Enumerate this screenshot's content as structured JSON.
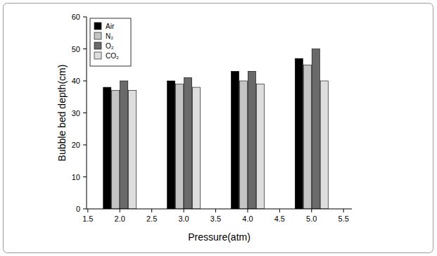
{
  "chart_data": {
    "type": "bar",
    "x_label": "Pressure(atm)",
    "y_label": "Bubble bed depth(cm)",
    "x": [
      2,
      3,
      4,
      5
    ],
    "series": [
      {
        "name": "Air",
        "color": "#000000",
        "values": [
          38,
          40,
          43,
          47
        ]
      },
      {
        "name": "N₂",
        "color": "#c4c4c4",
        "values": [
          37,
          39,
          40,
          45
        ]
      },
      {
        "name": "O₂",
        "color": "#6a6a6a",
        "values": [
          40,
          41,
          43,
          50
        ]
      },
      {
        "name": "CO₂",
        "color": "#dedede",
        "values": [
          37,
          38,
          39,
          40
        ]
      }
    ],
    "xlim": [
      1.48,
      5.63
    ],
    "xticks": [
      1.5,
      {
        "value": 2,
        "label": "2.0"
      },
      2.5,
      {
        "value": 3,
        "label": "3.0"
      },
      3.5,
      {
        "value": 4,
        "label": "4.0"
      },
      4.5,
      {
        "value": 5,
        "label": "5.0"
      },
      5.5
    ],
    "ylim": [
      0,
      60
    ],
    "yticks": [
      0,
      10,
      20,
      30,
      40,
      50,
      60
    ],
    "grid": false,
    "legend": "top-left"
  }
}
